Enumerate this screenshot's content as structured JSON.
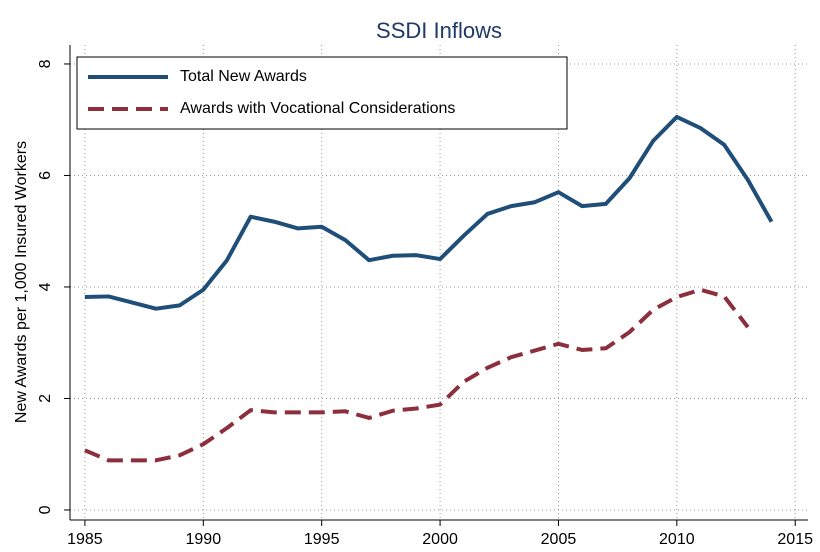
{
  "chart_data": {
    "type": "line",
    "title": "SSDI Inflows",
    "y_label": "New Awards per 1,000 Insured Workers",
    "x": [
      1985,
      1986,
      1987,
      1988,
      1989,
      1990,
      1991,
      1992,
      1993,
      1994,
      1995,
      1996,
      1997,
      1998,
      1999,
      2000,
      2001,
      2002,
      2003,
      2004,
      2005,
      2006,
      2007,
      2008,
      2009,
      2010,
      2011,
      2012,
      2013,
      2014
    ],
    "series": [
      {
        "name": "Total New Awards",
        "color": "#1f4e79",
        "dash": "solid",
        "values": [
          3.82,
          3.83,
          3.72,
          3.61,
          3.67,
          3.95,
          4.48,
          5.26,
          5.17,
          5.05,
          5.08,
          4.84,
          4.48,
          4.56,
          4.57,
          4.5,
          4.92,
          5.31,
          5.45,
          5.52,
          5.7,
          5.45,
          5.49,
          5.95,
          6.62,
          7.05,
          6.85,
          6.55,
          5.92,
          5.17
        ]
      },
      {
        "name": "Awards with Vocational Considerations",
        "color": "#8b2f3c",
        "dash": "dashed",
        "values": [
          1.07,
          0.89,
          0.89,
          0.89,
          0.98,
          1.18,
          1.47,
          1.79,
          1.75,
          1.75,
          1.75,
          1.77,
          1.65,
          1.78,
          1.82,
          1.89,
          2.3,
          2.55,
          2.74,
          2.86,
          2.98,
          2.87,
          2.9,
          3.19,
          3.59,
          3.82,
          3.95,
          3.83,
          3.28,
          null
        ]
      }
    ],
    "xlim": [
      1984.37,
      2015.54
    ],
    "xticks": [
      1985,
      1990,
      1995,
      2000,
      2005,
      2010,
      2015
    ],
    "ylim": [
      -0.18,
      8.34
    ],
    "yticks": [
      0,
      2,
      4,
      6,
      8
    ],
    "grid": true,
    "legend": "upper-left"
  }
}
